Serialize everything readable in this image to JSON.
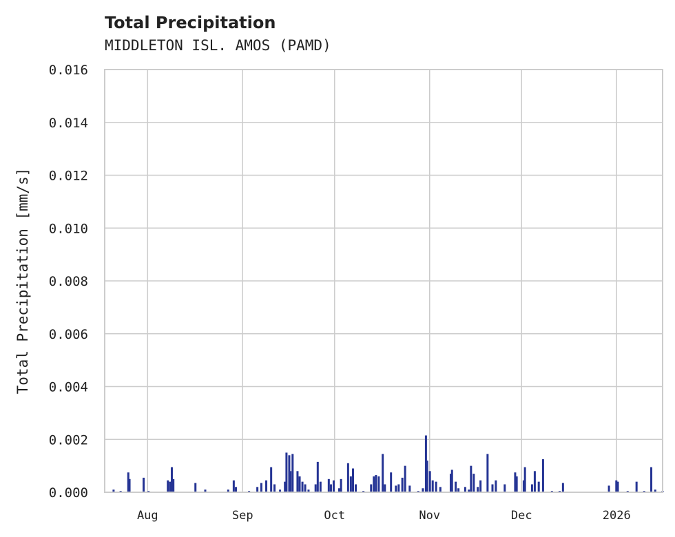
{
  "chart_data": {
    "type": "bar",
    "title": "Total Precipitation",
    "subtitle": "MIDDLETON ISL. AMOS (PAMD)",
    "xlabel": "",
    "ylabel": "Total Precipitation [mm/s]",
    "x_units": "days since 2025-07-18",
    "xlim": [
      0,
      182
    ],
    "ylim": [
      0,
      0.016
    ],
    "grid": true,
    "yticks": [
      0,
      0.002,
      0.004,
      0.006,
      0.008,
      0.01,
      0.012,
      0.014,
      0.016
    ],
    "ytick_labels": [
      "0.000",
      "0.002",
      "0.004",
      "0.006",
      "0.008",
      "0.010",
      "0.012",
      "0.014",
      "0.016"
    ],
    "xticks": [
      {
        "day": 14,
        "label": "Aug"
      },
      {
        "day": 45,
        "label": "Sep"
      },
      {
        "day": 75,
        "label": "Oct"
      },
      {
        "day": 106,
        "label": "Nov"
      },
      {
        "day": 136,
        "label": "Dec"
      },
      {
        "day": 167,
        "label": "2026"
      }
    ],
    "color": "#253494",
    "points": [
      [
        2.9,
        0.0001
      ],
      [
        5.2,
        5e-05
      ],
      [
        7.7,
        0.00075
      ],
      [
        8.1,
        0.0005
      ],
      [
        12.7,
        0.00055
      ],
      [
        14.3,
        5e-05
      ],
      [
        20.6,
        0.00045
      ],
      [
        21.3,
        0.0004
      ],
      [
        21.9,
        0.00095
      ],
      [
        22.4,
        0.0005
      ],
      [
        29.6,
        0.00035
      ],
      [
        32.8,
        0.0001
      ],
      [
        40.3,
        0.0001
      ],
      [
        42.1,
        0.00045
      ],
      [
        42.8,
        0.0002
      ],
      [
        47.1,
        5e-05
      ],
      [
        49.8,
        0.0002
      ],
      [
        51.1,
        0.00035
      ],
      [
        52.7,
        0.00045
      ],
      [
        54.3,
        0.00095
      ],
      [
        55.4,
        0.0003
      ],
      [
        57.2,
        0.0001
      ],
      [
        58.8,
        0.0004
      ],
      [
        59.3,
        0.0015
      ],
      [
        60.2,
        0.0014
      ],
      [
        60.6,
        0.0008
      ],
      [
        61.3,
        0.00145
      ],
      [
        62.9,
        0.0008
      ],
      [
        63.6,
        0.0006
      ],
      [
        64.5,
        0.0004
      ],
      [
        65.4,
        0.0003
      ],
      [
        66.5,
        0.0001
      ],
      [
        68.8,
        0.0003
      ],
      [
        69.5,
        0.00115
      ],
      [
        70.4,
        0.0004
      ],
      [
        73.1,
        0.0005
      ],
      [
        73.8,
        0.0003
      ],
      [
        74.7,
        0.00045
      ],
      [
        76.5,
        0.00015
      ],
      [
        77.1,
        0.0005
      ],
      [
        79.4,
        0.0011
      ],
      [
        80.3,
        0.0006
      ],
      [
        81.0,
        0.0009
      ],
      [
        81.9,
        0.0003
      ],
      [
        84.4,
        5e-05
      ],
      [
        86.9,
        0.0003
      ],
      [
        87.8,
        0.0006
      ],
      [
        88.5,
        0.00065
      ],
      [
        89.4,
        0.0006
      ],
      [
        90.7,
        0.00145
      ],
      [
        91.4,
        0.0003
      ],
      [
        93.4,
        0.00075
      ],
      [
        95.0,
        0.00025
      ],
      [
        95.9,
        0.0003
      ],
      [
        97.1,
        0.00055
      ],
      [
        98.0,
        0.001
      ],
      [
        99.5,
        0.00025
      ],
      [
        102.3,
        5e-05
      ],
      [
        103.8,
        0.00015
      ],
      [
        104.8,
        0.00215
      ],
      [
        105.2,
        0.0012
      ],
      [
        106.1,
        0.0008
      ],
      [
        107.0,
        0.00045
      ],
      [
        108.1,
        0.0004
      ],
      [
        109.5,
        0.0002
      ],
      [
        112.9,
        0.0007
      ],
      [
        113.3,
        0.00085
      ],
      [
        114.5,
        0.0004
      ],
      [
        115.4,
        0.00015
      ],
      [
        117.6,
        0.0002
      ],
      [
        118.8,
        0.0001
      ],
      [
        119.5,
        0.001
      ],
      [
        120.4,
        0.0007
      ],
      [
        121.7,
        0.0002
      ],
      [
        122.6,
        0.00045
      ],
      [
        124.9,
        0.00145
      ],
      [
        126.5,
        0.0003
      ],
      [
        127.6,
        0.00045
      ],
      [
        130.5,
        0.0003
      ],
      [
        133.9,
        0.00075
      ],
      [
        134.4,
        0.0006
      ],
      [
        136.7,
        0.00045
      ],
      [
        137.1,
        0.00095
      ],
      [
        139.4,
        0.0003
      ],
      [
        140.3,
        0.0008
      ],
      [
        141.6,
        0.0004
      ],
      [
        143.0,
        0.00125
      ],
      [
        145.9,
        5e-05
      ],
      [
        148.4,
        5e-05
      ],
      [
        149.5,
        0.00035
      ],
      [
        164.5,
        0.00025
      ],
      [
        166.9,
        0.00045
      ],
      [
        167.4,
        0.0004
      ],
      [
        170.6,
        5e-05
      ],
      [
        173.5,
        0.0004
      ],
      [
        176.0,
        5e-05
      ],
      [
        178.3,
        0.00095
      ],
      [
        179.6,
        0.0001
      ],
      [
        182.0,
        5e-05
      ]
    ]
  }
}
